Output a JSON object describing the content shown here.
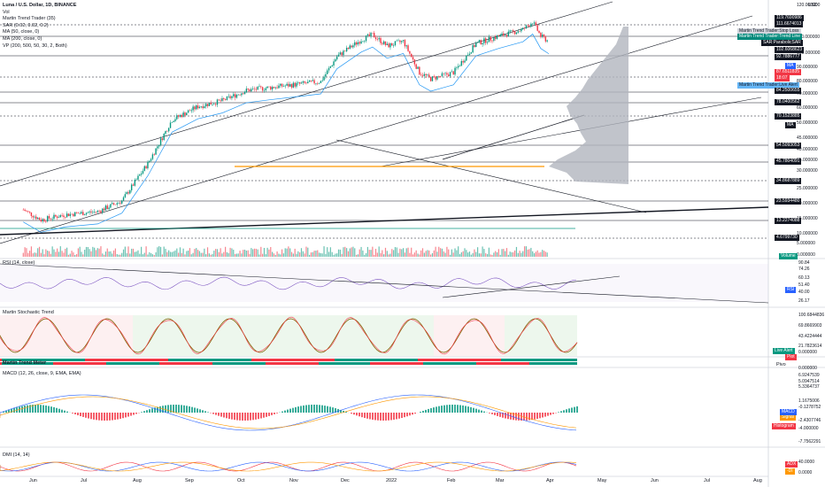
{
  "symbol_title": "Luna / U.S. Dollar, 1D, BINANCE",
  "legend": [
    "Vol",
    "Martin Trend Trader (35)",
    "SAR (0.02, 0.02, 0.2)",
    "MA (50, close, 0)",
    "MA (200, close, 0)",
    "VP (200, 500, 50, 30, 2, Both)"
  ],
  "currency": "USD",
  "price_axis": [
    "120.000000",
    "110.000000",
    "100.000000",
    "90.000000",
    "80.000000",
    "70.000000",
    "60.000000",
    "50.000000",
    "45.000000",
    "40.000000",
    "35.000000",
    "30.000000",
    "25.000000",
    "20.000000",
    "15.000000",
    "10.000000",
    "5.000000",
    "0.000000"
  ],
  "price_tags": [
    {
      "text": "119.7690986",
      "style": "dark"
    },
    {
      "text": "111.6674013",
      "style": "dark"
    },
    {
      "text": "Martin Trend Trader:Stop Loss",
      "style": "light"
    },
    {
      "text": "Martin Trend Trader:Trend Line",
      "style": "teal"
    },
    {
      "text": "SAR:ParabolicSAR",
      "style": "dark"
    },
    {
      "text": "102.6068623",
      "style": "dark"
    },
    {
      "text": "92.7886777",
      "style": "dark"
    },
    {
      "text": "MA",
      "style": "blue"
    },
    {
      "text": "87.6511835",
      "style": "red"
    },
    {
      "text": "18:07",
      "style": "red"
    },
    {
      "text": "Martin Trend Trader:Live Alert",
      "style": "lblue"
    },
    {
      "text": "84.2500655",
      "style": "dark"
    },
    {
      "text": "78.0400562",
      "style": "dark"
    },
    {
      "text": "70.1523885",
      "style": "dark"
    },
    {
      "text": "MA",
      "style": "dark"
    },
    {
      "text": "54.5093053",
      "style": "dark"
    },
    {
      "text": "45.7804091",
      "style": "dark"
    },
    {
      "text": "34.8687889",
      "style": "dark"
    },
    {
      "text": "23.5934480",
      "style": "dark"
    },
    {
      "text": "13.2274088",
      "style": "dark"
    },
    {
      "text": "4.6799730",
      "style": "dark"
    },
    {
      "text": "Volume",
      "style": "green"
    }
  ],
  "rsi": {
    "title": "RSI (14, close)",
    "axis": [
      "90.84",
      "74.26",
      "60.13",
      "51.40",
      "40.00",
      "26.17"
    ],
    "tag": "RSI"
  },
  "stoch": {
    "title": "Martin Stochastic Trend",
    "axis": [
      "100.6844836",
      "69.8669903",
      "43.4224444",
      "21.7823614",
      "0.000000"
    ],
    "tags": [
      "Live Alert",
      "Plot"
    ],
    "pivot": "Pivo"
  },
  "trend_meter": {
    "title": "Martin Trend Meter",
    "axis": "0.000000"
  },
  "macd": {
    "title": "MACD (12, 26, close, 9, EMA, EMA)",
    "axis": [
      "6.9247539",
      "5.0947514",
      "5.3364737",
      "1.1675006",
      "-0.1278752",
      "-2.4307746",
      "-4.000000",
      "-7.7562291"
    ],
    "tags": [
      "Signal",
      "MACD",
      "Histogram"
    ]
  },
  "dmi": {
    "title": "DMI (14, 14)",
    "axis": [
      "40.0000",
      "0.0000"
    ],
    "tags": [
      "ADX",
      "-DI"
    ]
  },
  "time_axis": [
    "Jun",
    "Jul",
    "Aug",
    "Sep",
    "Oct",
    "Nov",
    "Dec",
    "2022",
    "Feb",
    "Mar",
    "Apr",
    "May",
    "Jun",
    "Jul",
    "Aug"
  ],
  "colors": {
    "up": "#089981",
    "down": "#f23645",
    "ma50": "#2196f3",
    "ma200": "#131722",
    "vp": "#b2b5be",
    "poc": "#ff9800",
    "rsi": "#7e57c2",
    "stoch_k": "#7f6000",
    "stoch_d": "#f23645",
    "bg_green": "#e8f5e9",
    "bg_red": "#fdecee",
    "bg_purple": "#ede7f6"
  },
  "chart_data": {
    "type": "candlestick",
    "series": [
      {
        "name": "Luna / U.S. Dollar",
        "ohlc_anchors": [
          {
            "date": "2021-05-25",
            "close": 7.0
          },
          {
            "date": "2021-06-05",
            "close": 6.0
          },
          {
            "date": "2021-06-20",
            "close": 6.5
          },
          {
            "date": "2021-07-10",
            "close": 6.8
          },
          {
            "date": "2021-07-25",
            "close": 8.0
          },
          {
            "date": "2021-08-10",
            "close": 14.0
          },
          {
            "date": "2021-08-25",
            "close": 27.0
          },
          {
            "date": "2021-09-10",
            "close": 33.0
          },
          {
            "date": "2021-09-25",
            "close": 36.0
          },
          {
            "date": "2021-10-10",
            "close": 42.0
          },
          {
            "date": "2021-10-25",
            "close": 44.0
          },
          {
            "date": "2021-11-10",
            "close": 46.0
          },
          {
            "date": "2021-11-25",
            "close": 48.0
          },
          {
            "date": "2021-12-05",
            "close": 70.0
          },
          {
            "date": "2021-12-20",
            "close": 90.0
          },
          {
            "date": "2021-12-27",
            "close": 97.0
          },
          {
            "date": "2022-01-05",
            "close": 82.0
          },
          {
            "date": "2022-01-15",
            "close": 88.0
          },
          {
            "date": "2022-01-25",
            "close": 55.0
          },
          {
            "date": "2022-02-01",
            "close": 50.0
          },
          {
            "date": "2022-02-15",
            "close": 55.0
          },
          {
            "date": "2022-03-01",
            "close": 85.0
          },
          {
            "date": "2022-03-15",
            "close": 95.0
          },
          {
            "date": "2022-03-30",
            "close": 105.0
          },
          {
            "date": "2022-04-05",
            "close": 118.0
          },
          {
            "date": "2022-04-10",
            "close": 95.0
          },
          {
            "date": "2022-04-15",
            "close": 87.65
          }
        ]
      }
    ]
  }
}
